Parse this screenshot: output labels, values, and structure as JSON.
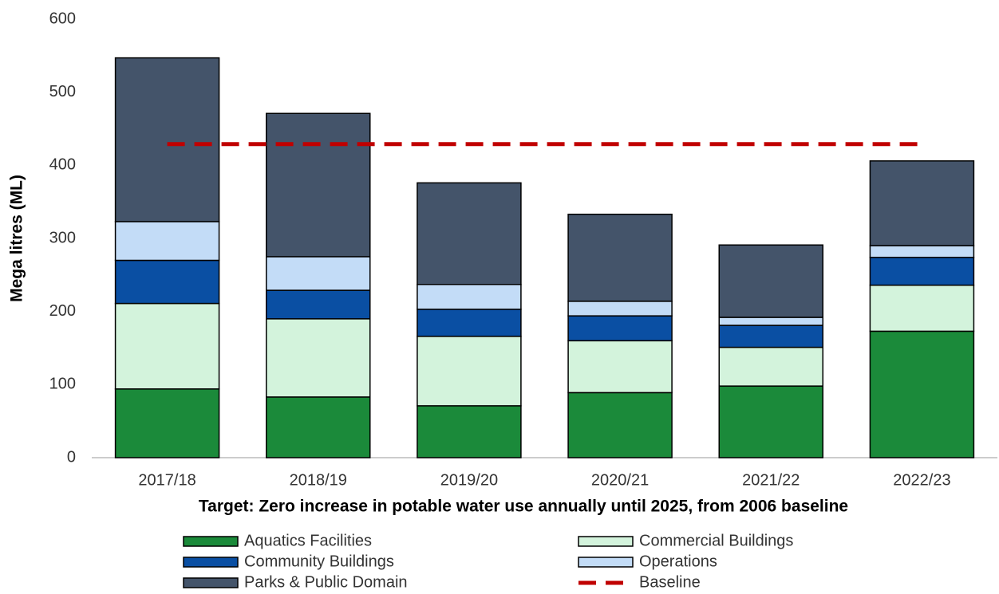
{
  "chart_data": {
    "type": "stacked_bar",
    "x_label": "Target: Zero increase in potable water use annually until 2025, from 2006 baseline",
    "y_label": "Mega litres (ML)",
    "categories": [
      "2017/18",
      "2018/19",
      "2019/20",
      "2020/21",
      "2021/22",
      "2022/23"
    ],
    "series": [
      {
        "name": "Aquatics Facilities",
        "color": "#1b8a3a",
        "values": [
          94,
          83,
          71,
          89,
          98,
          173
        ]
      },
      {
        "name": "Commercial Buildings",
        "color": "#d3f3dc",
        "values": [
          117,
          107,
          95,
          71,
          53,
          63
        ]
      },
      {
        "name": "Community Buildings",
        "color": "#0a4fa3",
        "values": [
          59,
          39,
          37,
          34,
          30,
          38
        ]
      },
      {
        "name": "Operations",
        "color": "#c3dcf7",
        "values": [
          53,
          46,
          34,
          20,
          11,
          16
        ]
      },
      {
        "name": "Parks & Public Domain",
        "color": "#44546a",
        "values": [
          224,
          196,
          139,
          119,
          99,
          116
        ]
      },
      {
        "name": "Baseline",
        "color": "#c00000",
        "type": "line",
        "dashed": true,
        "values": [
          429,
          429,
          429,
          429,
          429,
          429
        ]
      }
    ],
    "ylim": [
      0,
      600
    ],
    "yticks": [
      0,
      100,
      200,
      300,
      400,
      500,
      600
    ],
    "grid": false
  }
}
